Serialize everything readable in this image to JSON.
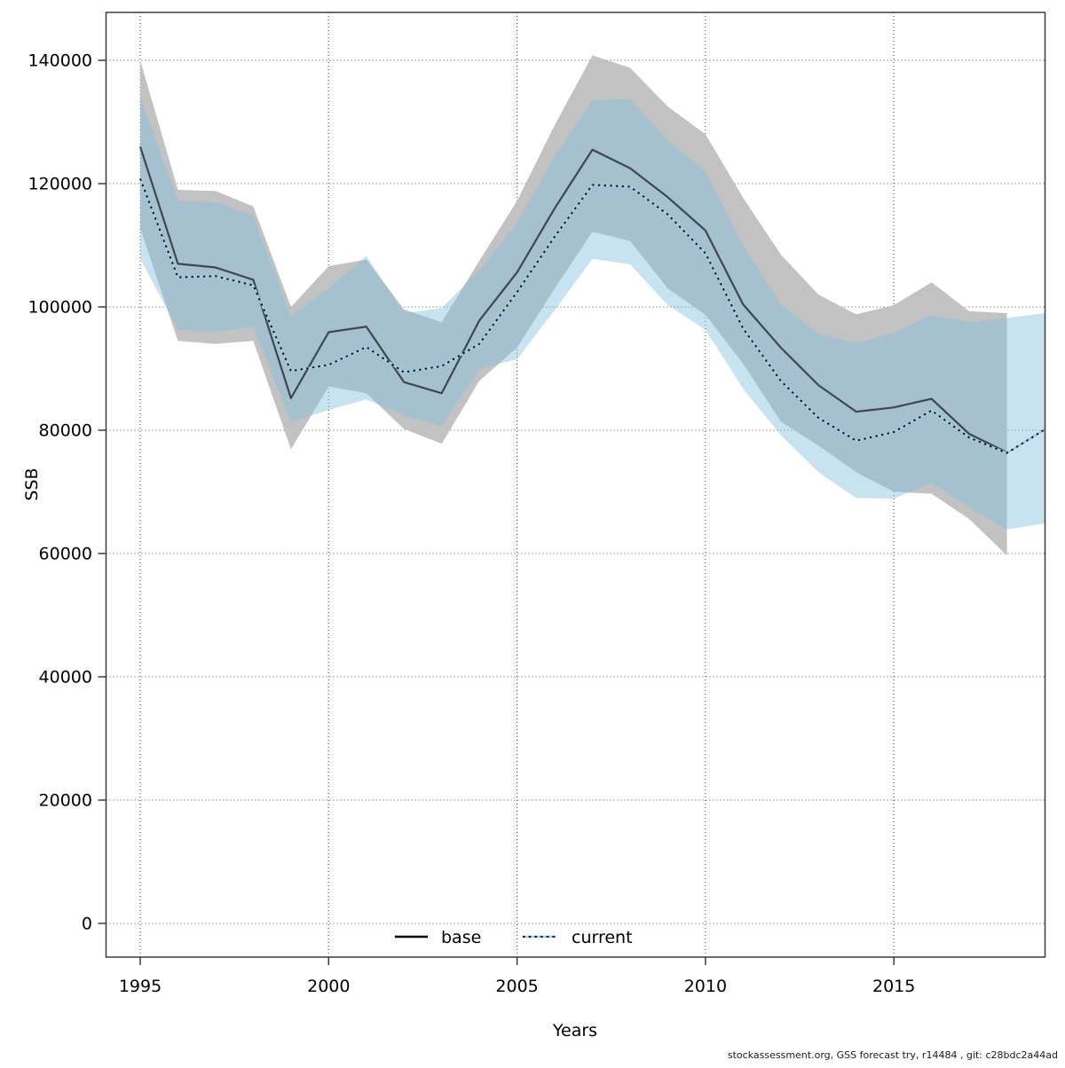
{
  "chart_data": {
    "type": "line",
    "xlabel": "Years",
    "ylabel": "SSB",
    "x_ticks": [
      1995,
      2000,
      2005,
      2010,
      2015
    ],
    "y_ticks": [
      0,
      20000,
      40000,
      60000,
      80000,
      100000,
      120000,
      140000
    ],
    "xlim": [
      1995,
      2019
    ],
    "ylim": [
      0,
      140000
    ],
    "grid": "dotted",
    "legend_position": "bottom-center",
    "series": [
      {
        "name": "base",
        "line_style": "solid",
        "years": [
          1995,
          1996,
          1997,
          1998,
          1999,
          2000,
          2001,
          2002,
          2003,
          2004,
          2005,
          2006,
          2007,
          2008,
          2009,
          2010,
          2011,
          2012,
          2013,
          2014,
          2015,
          2016,
          2017,
          2018
        ],
        "values": [
          126000,
          107000,
          106400,
          104400,
          85200,
          95900,
          96800,
          87800,
          86000,
          97800,
          105600,
          116000,
          125500,
          122500,
          117800,
          112400,
          100400,
          93400,
          87300,
          83000,
          83700,
          85100,
          79400,
          76400
        ],
        "band_hi": [
          140000,
          119000,
          118800,
          116300,
          100000,
          106600,
          107700,
          99600,
          97500,
          107500,
          117200,
          129500,
          140800,
          138800,
          132500,
          128000,
          117700,
          108500,
          102000,
          98800,
          100300,
          104000,
          99300,
          99000
        ],
        "band_lo": [
          112800,
          94500,
          94000,
          94500,
          76900,
          87100,
          86000,
          80200,
          77800,
          88000,
          93400,
          103000,
          112200,
          110700,
          103000,
          98700,
          90800,
          81400,
          77500,
          73200,
          70000,
          69700,
          65600,
          59700
        ]
      },
      {
        "name": "current",
        "line_style": "dotted",
        "years": [
          1995,
          1996,
          1997,
          1998,
          1999,
          2000,
          2001,
          2002,
          2003,
          2004,
          2005,
          2006,
          2007,
          2008,
          2009,
          2010,
          2011,
          2012,
          2013,
          2014,
          2015,
          2016,
          2017,
          2018,
          2019
        ],
        "values": [
          120800,
          104800,
          105000,
          103500,
          89600,
          90600,
          93500,
          89400,
          90400,
          94000,
          102400,
          111400,
          119800,
          119500,
          115000,
          108700,
          96500,
          88000,
          82000,
          78300,
          79700,
          83200,
          78800,
          76300,
          80100
        ],
        "band_hi": [
          134000,
          117200,
          117000,
          114800,
          98500,
          103000,
          108300,
          99000,
          99800,
          106000,
          113600,
          124500,
          133500,
          133700,
          127000,
          122000,
          110000,
          100400,
          95600,
          94100,
          95800,
          98700,
          97500,
          98200,
          99000
        ],
        "band_lo": [
          107800,
          96300,
          96000,
          96800,
          81300,
          83300,
          85000,
          82400,
          80700,
          90000,
          91500,
          99500,
          107800,
          106900,
          100300,
          96300,
          86700,
          79200,
          73200,
          69000,
          68900,
          71400,
          67500,
          63900,
          64900
        ]
      }
    ]
  },
  "legend": {
    "base_label": "base",
    "current_label": "current"
  },
  "labels": {
    "x_axis": "Years",
    "y_axis": "SSB"
  },
  "footer": "stockassessment.org, GSS forecast try, r14484 , git: c28bdc2a44ad",
  "colors": {
    "base_band": "#c2c2c2",
    "current_band_rgba": "rgba(131,191,222,0.45)",
    "base_line": "#3f474d",
    "current_line_under": "#9fd0e8",
    "current_line_dots": "#101010",
    "legend_base_line": "#000000",
    "border": "#3c3c3c",
    "grid": "#4a4a4a"
  }
}
